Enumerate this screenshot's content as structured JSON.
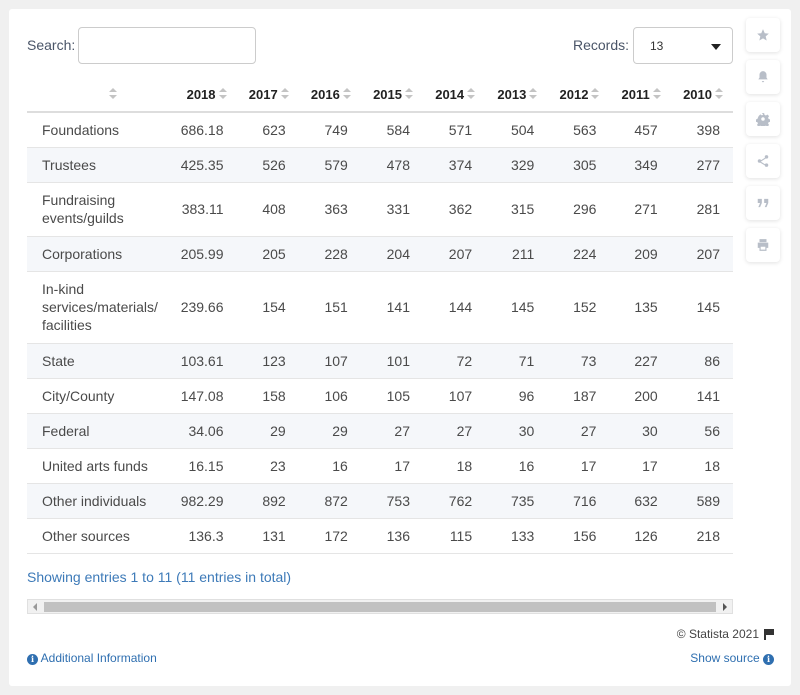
{
  "search": {
    "label": "Search:",
    "value": "",
    "placeholder": ""
  },
  "records": {
    "label": "Records:",
    "selected": "13"
  },
  "table": {
    "columns": [
      "",
      "2018",
      "2017",
      "2016",
      "2015",
      "2014",
      "2013",
      "2012",
      "2011",
      "2010"
    ],
    "rows": [
      {
        "label": "Foundations",
        "values": [
          "686.18",
          "623",
          "749",
          "584",
          "571",
          "504",
          "563",
          "457",
          "398"
        ]
      },
      {
        "label": "Trustees",
        "values": [
          "425.35",
          "526",
          "579",
          "478",
          "374",
          "329",
          "305",
          "349",
          "277"
        ]
      },
      {
        "label": "Fundraising events/guilds",
        "values": [
          "383.11",
          "408",
          "363",
          "331",
          "362",
          "315",
          "296",
          "271",
          "281"
        ]
      },
      {
        "label": "Corporations",
        "values": [
          "205.99",
          "205",
          "228",
          "204",
          "207",
          "211",
          "224",
          "209",
          "207"
        ]
      },
      {
        "label": "In-kind services/materials/ facilities",
        "values": [
          "239.66",
          "154",
          "151",
          "141",
          "144",
          "145",
          "152",
          "135",
          "145"
        ]
      },
      {
        "label": "State",
        "values": [
          "103.61",
          "123",
          "107",
          "101",
          "72",
          "71",
          "73",
          "227",
          "86"
        ]
      },
      {
        "label": "City/County",
        "values": [
          "147.08",
          "158",
          "106",
          "105",
          "107",
          "96",
          "187",
          "200",
          "141"
        ]
      },
      {
        "label": "Federal",
        "values": [
          "34.06",
          "29",
          "29",
          "27",
          "27",
          "30",
          "27",
          "30",
          "56"
        ]
      },
      {
        "label": "United arts funds",
        "values": [
          "16.15",
          "23",
          "16",
          "17",
          "18",
          "16",
          "17",
          "17",
          "18"
        ]
      },
      {
        "label": "Other individuals",
        "values": [
          "982.29",
          "892",
          "872",
          "753",
          "762",
          "735",
          "716",
          "632",
          "589"
        ]
      },
      {
        "label": "Other sources",
        "values": [
          "136.3",
          "131",
          "172",
          "136",
          "115",
          "133",
          "156",
          "126",
          "218"
        ]
      }
    ]
  },
  "footer": {
    "entries_text": "Showing entries 1 to 11 (11 entries in total)",
    "copyright": "© Statista 2021",
    "additional_info": "Additional Information",
    "show_source": "Show source"
  },
  "sidebar": {
    "icons": [
      "star-icon",
      "bell-icon",
      "gear-icon",
      "share-icon",
      "quote-icon",
      "print-icon"
    ]
  },
  "colors": {
    "link": "#2f6fb0",
    "row_stripe": "#f5f7fa",
    "background": "#f0f0f0"
  }
}
